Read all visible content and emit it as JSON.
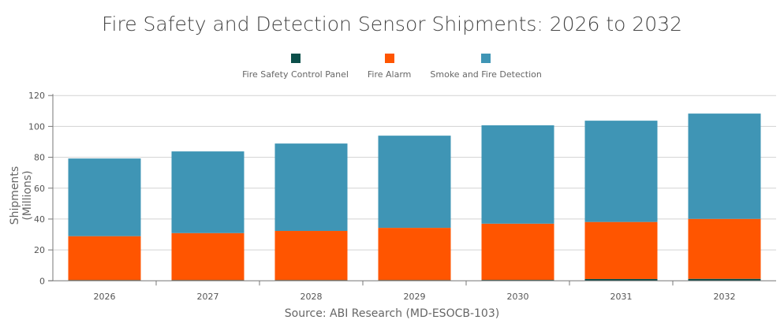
{
  "chart_data": {
    "type": "bar",
    "stacked": true,
    "title": "Fire Safety and Detection Sensor Shipments: 2026 to 2032",
    "ylabel": "Shipments (Millions)",
    "xlabel": "",
    "source": "Source: ABI Research (MD-ESOCB-103)",
    "categories": [
      "2026",
      "2027",
      "2028",
      "2029",
      "2030",
      "2031",
      "2032"
    ],
    "ylim": [
      0,
      120
    ],
    "yticks": [
      0,
      20,
      40,
      60,
      80,
      100,
      120
    ],
    "grid": true,
    "legend_position": "top",
    "series": [
      {
        "name": "Fire Safety Control Panel",
        "color": "#0b4f4a",
        "values": [
          0.5,
          0.5,
          0.5,
          0.5,
          0.6,
          1.2,
          1.3
        ]
      },
      {
        "name": "Fire Alarm",
        "color": "#ff5500",
        "values": [
          28.4,
          30.4,
          31.8,
          33.8,
          36.4,
          36.9,
          38.8
        ]
      },
      {
        "name": "Smoke and Fire Detection",
        "color": "#3f95b5",
        "values": [
          50.3,
          52.9,
          56.6,
          59.7,
          63.7,
          65.6,
          68.2
        ]
      }
    ]
  }
}
